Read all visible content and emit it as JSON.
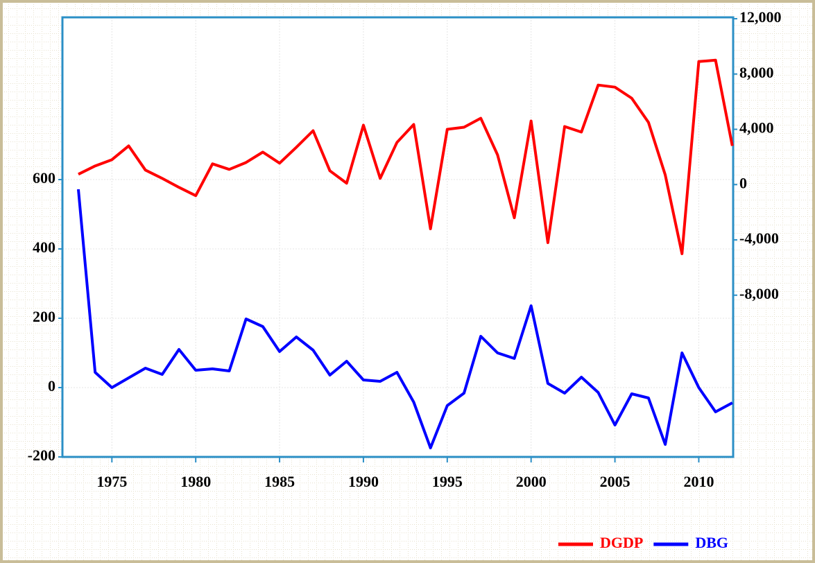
{
  "chart_data": {
    "type": "line",
    "x": [
      1973,
      1974,
      1975,
      1976,
      1977,
      1978,
      1979,
      1980,
      1981,
      1982,
      1983,
      1984,
      1985,
      1986,
      1987,
      1988,
      1989,
      1990,
      1991,
      1992,
      1993,
      1994,
      1995,
      1996,
      1997,
      1998,
      1999,
      2000,
      2001,
      2002,
      2003,
      2004,
      2005,
      2006,
      2007,
      2008,
      2009,
      2010,
      2011,
      2012
    ],
    "series": [
      {
        "name": "DGDP",
        "color": "#ff0000",
        "axis": "y2",
        "values": [
          750,
          1350,
          1800,
          2800,
          1050,
          450,
          -200,
          -800,
          1500,
          1100,
          1600,
          2350,
          1550,
          2700,
          3900,
          1000,
          100,
          4300,
          450,
          3050,
          4350,
          -3200,
          4000,
          4150,
          4800,
          2150,
          -2400,
          4600,
          -4200,
          4200,
          3800,
          7200,
          7050,
          6250,
          4500,
          700,
          -5000,
          8900,
          9000,
          2800
        ]
      },
      {
        "name": "DBG",
        "color": "#0000ff",
        "values": [
          572,
          44,
          0,
          28,
          56,
          38,
          110,
          50,
          54,
          48,
          198,
          176,
          104,
          146,
          108,
          36,
          76,
          22,
          18,
          44,
          -42,
          -174,
          -52,
          -16,
          148,
          100,
          84,
          236,
          12,
          -16,
          30,
          -14,
          -108,
          -18,
          -30,
          -164,
          100,
          0,
          -70,
          -44
        ]
      }
    ],
    "xlim": [
      1972.05,
      2012.05
    ],
    "xticks": [
      1975,
      1980,
      1985,
      1990,
      1995,
      2000,
      2005,
      2010
    ],
    "ylim": [
      -200,
      1068
    ],
    "yticks": [
      -200,
      0,
      200,
      400,
      600
    ],
    "y2lim": [
      -19700,
      12100
    ],
    "y2ticks": [
      {
        "value": -8000,
        "label": "-8,000"
      },
      {
        "value": -4000,
        "label": "-4,000"
      },
      0,
      {
        "value": 4000,
        "label": "4,000"
      },
      {
        "value": 8000,
        "label": "8,000"
      },
      {
        "value": 12000,
        "label": "12,000"
      }
    ],
    "grid": true,
    "legend": "bottom-right"
  }
}
